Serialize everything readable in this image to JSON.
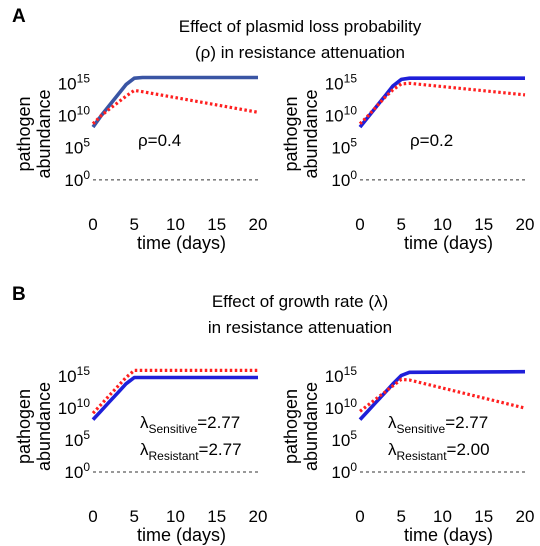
{
  "panels": [
    {
      "letter": "A",
      "title_lines": [
        "Effect of plasmid loss probability",
        "(ρ) in resistance attenuation"
      ]
    },
    {
      "letter": "B",
      "title_lines": [
        "Effect of growth rate (λ)",
        "in resistance attenuation"
      ]
    }
  ],
  "chart_data": [
    {
      "type": "line",
      "panel": "A",
      "xlabel": "time (days)",
      "ylabel_lines": [
        "pathogen",
        "abundance"
      ],
      "xlim": [
        0,
        20
      ],
      "ylim_log10": [
        -5,
        18
      ],
      "xticks": [
        0,
        5,
        10,
        15,
        20
      ],
      "yticks_log10": [
        0,
        5,
        10,
        15
      ],
      "baseline_log10": 0,
      "annotation": [
        {
          "base": "ρ=0.4"
        }
      ],
      "series": [
        {
          "color": "#3a55a4",
          "style": "solid",
          "x": [
            0,
            1,
            2,
            3,
            4,
            5,
            6,
            20
          ],
          "y_log10": [
            8.2,
            10.0,
            11.6,
            13.2,
            14.8,
            15.8,
            15.9,
            15.9
          ]
        },
        {
          "color": "#ff2020",
          "style": "dotted",
          "x": [
            0,
            1,
            2,
            3,
            4,
            5,
            6,
            20
          ],
          "y_log10": [
            8.7,
            10.0,
            11.0,
            12.0,
            13.0,
            13.9,
            13.7,
            10.5
          ]
        }
      ]
    },
    {
      "type": "line",
      "panel": "A",
      "xlabel": "time (days)",
      "ylabel_lines": [
        "pathogen",
        "abundance"
      ],
      "xlim": [
        0,
        20
      ],
      "ylim_log10": [
        -5,
        18
      ],
      "xticks": [
        0,
        5,
        10,
        15,
        20
      ],
      "yticks_log10": [
        0,
        5,
        10,
        15
      ],
      "baseline_log10": 0,
      "annotation": [
        {
          "base": "ρ=0.2"
        }
      ],
      "series": [
        {
          "color": "#1f1fd9",
          "style": "solid",
          "x": [
            0,
            1,
            2,
            3,
            4,
            5,
            6,
            20
          ],
          "y_log10": [
            8.2,
            9.8,
            11.4,
            13.0,
            14.6,
            15.6,
            15.8,
            15.8
          ]
        },
        {
          "color": "#ff2020",
          "style": "dotted",
          "x": [
            0,
            1,
            2,
            3,
            4,
            5,
            6,
            20
          ],
          "y_log10": [
            8.7,
            10.0,
            11.4,
            12.8,
            14.0,
            14.9,
            15.0,
            13.2
          ]
        }
      ]
    },
    {
      "type": "line",
      "panel": "B",
      "xlabel": "time (days)",
      "ylabel_lines": [
        "pathogen",
        "abundance"
      ],
      "xlim": [
        0,
        20
      ],
      "ylim_log10": [
        -5,
        18
      ],
      "xticks": [
        0,
        5,
        10,
        15,
        20
      ],
      "yticks_log10": [
        0,
        5,
        10,
        15
      ],
      "baseline_log10": 0,
      "annotation": [
        {
          "base": "λ",
          "sub": "Sensitive",
          "tail": "=2.77"
        },
        {
          "base": "λ",
          "sub": "Resistant",
          "tail": "=2.77"
        }
      ],
      "series": [
        {
          "color": "#1f1fd9",
          "style": "solid",
          "x": [
            0,
            1,
            2,
            3,
            4,
            5,
            20
          ],
          "y_log10": [
            8.2,
            9.6,
            11.0,
            12.4,
            13.8,
            14.8,
            14.8
          ]
        },
        {
          "color": "#ff2020",
          "style": "dotted",
          "x": [
            0,
            1,
            2,
            3,
            4,
            5,
            20
          ],
          "y_log10": [
            9.2,
            10.6,
            12.0,
            13.4,
            14.8,
            15.9,
            15.9
          ]
        }
      ]
    },
    {
      "type": "line",
      "panel": "B",
      "xlabel": "time (days)",
      "ylabel_lines": [
        "pathogen",
        "abundance"
      ],
      "xlim": [
        0,
        20
      ],
      "ylim_log10": [
        -5,
        18
      ],
      "xticks": [
        0,
        5,
        10,
        15,
        20
      ],
      "yticks_log10": [
        0,
        5,
        10,
        15
      ],
      "baseline_log10": 0,
      "annotation": [
        {
          "base": "λ",
          "sub": "Sensitive",
          "tail": "=2.77"
        },
        {
          "base": "λ",
          "sub": "Resistant",
          "tail": "=2.00"
        }
      ],
      "series": [
        {
          "color": "#1f1fd9",
          "style": "solid",
          "x": [
            0,
            1,
            2,
            3,
            4,
            5,
            6,
            20
          ],
          "y_log10": [
            8.2,
            9.6,
            11.0,
            12.4,
            13.8,
            15.1,
            15.6,
            15.7
          ]
        },
        {
          "color": "#ff2020",
          "style": "dotted",
          "x": [
            0,
            1,
            2,
            3,
            4,
            5,
            6,
            20
          ],
          "y_log10": [
            9.5,
            10.5,
            11.5,
            12.5,
            13.5,
            14.5,
            14.4,
            10.0
          ]
        }
      ]
    }
  ]
}
